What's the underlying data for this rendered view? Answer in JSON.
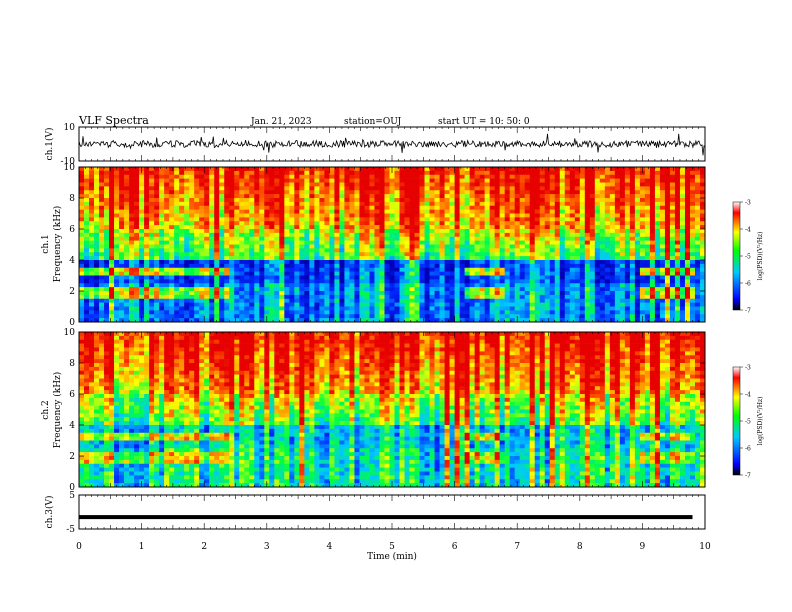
{
  "header": {
    "title": "VLF Spectra",
    "date": "Jan. 21, 2023",
    "station": "station=OUJ",
    "start": "start  UT =   10: 50: 0"
  },
  "colorbar": {
    "tick_labels": [
      "-3",
      "-4",
      "-5",
      "-6",
      "-7"
    ],
    "label": "log(PSD)(V²/Hz)"
  },
  "chart_data": [
    {
      "type": "line",
      "name": "ch1-waveform",
      "ylabel": "ch.1(V)",
      "ylim": [
        -10,
        10
      ],
      "yticks": [
        "10",
        "-10"
      ],
      "xlim": [
        0,
        10
      ],
      "description_level": 0,
      "amplitude": 2
    },
    {
      "type": "heatmap",
      "ylabel_top": "ch.1",
      "ylabel": "Frequency (kHz)",
      "yticks": [
        "0",
        "2",
        "4",
        "6",
        "8",
        "10"
      ],
      "ylim": [
        0,
        10
      ],
      "xlim": [
        0,
        10
      ],
      "clim": [
        -7,
        -3
      ]
    },
    {
      "type": "heatmap",
      "ylabel_top": "ch.2",
      "ylabel": "Frequency (kHz)",
      "yticks": [
        "0",
        "2",
        "4",
        "6",
        "8",
        "10"
      ],
      "ylim": [
        0,
        10
      ],
      "xlim": [
        0,
        10
      ],
      "clim": [
        -7,
        -3
      ]
    },
    {
      "type": "line",
      "name": "ch3-waveform",
      "ylabel": "ch.3(V)",
      "ylim": [
        -5,
        5
      ],
      "yticks": [
        "5",
        "-5"
      ],
      "xlim": [
        0,
        10
      ],
      "level": -1.5
    }
  ],
  "xaxis": {
    "label": "Time  (min)",
    "ticks": [
      "0",
      "1",
      "2",
      "3",
      "4",
      "5",
      "6",
      "7",
      "8",
      "9",
      "10"
    ]
  },
  "colors": {
    "spectrum_scale": [
      "#0000ff",
      "#00c8ff",
      "#00ff00",
      "#ffff00",
      "#ff0000"
    ]
  }
}
